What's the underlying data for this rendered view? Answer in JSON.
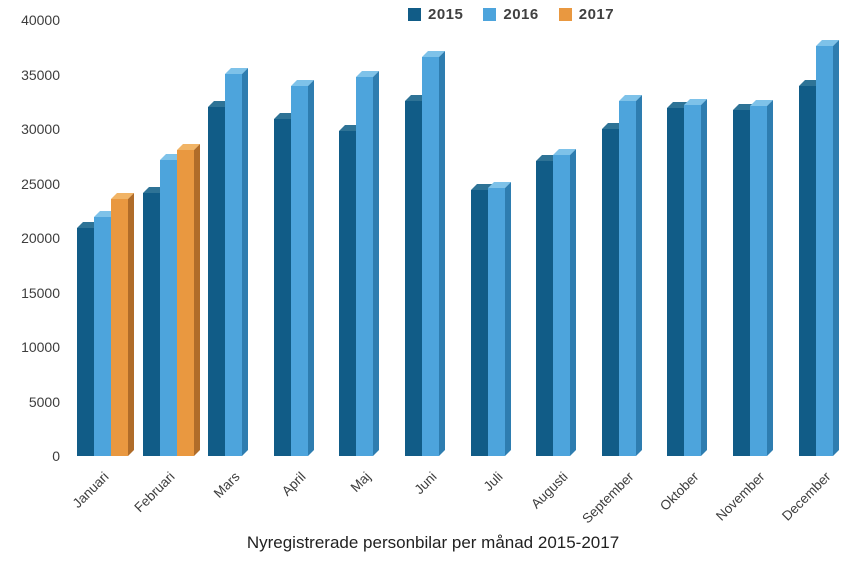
{
  "chart_data": {
    "type": "bar",
    "title": "Nyregistrerade personbilar per månad 2015-2017",
    "categories": [
      "Januari",
      "Februari",
      "Mars",
      "April",
      "Maj",
      "Juni",
      "Juli",
      "Augusti",
      "September",
      "Oktober",
      "November",
      "December"
    ],
    "series": [
      {
        "name": "2015",
        "color": "#115C87",
        "color_top": "#2E7396",
        "color_side": "#09405F",
        "values": [
          20900,
          24100,
          32000,
          30900,
          29800,
          32600,
          24400,
          27100,
          30000,
          31900,
          31700,
          33900
        ]
      },
      {
        "name": "2016",
        "color": "#4DA4DC",
        "color_top": "#7EC2E9",
        "color_side": "#2E7DB0",
        "values": [
          21900,
          27200,
          35000,
          33900,
          34800,
          36600,
          24600,
          27600,
          32600,
          32200,
          32100,
          37600
        ]
      },
      {
        "name": "2017",
        "color": "#E99840",
        "color_top": "#F1B466",
        "color_side": "#B06C29",
        "values": [
          23600,
          28100,
          null,
          null,
          null,
          null,
          null,
          null,
          null,
          null,
          null,
          null
        ]
      }
    ],
    "xlabel": "",
    "ylabel": "",
    "ylim": [
      0,
      40000
    ],
    "ytick_step": 5000,
    "yticks": [
      "0",
      "5000",
      "10000",
      "15000",
      "20000",
      "25000",
      "30000",
      "35000",
      "40000"
    ],
    "legend_position": "top",
    "grid": false,
    "style": "3d-effect-bars"
  }
}
